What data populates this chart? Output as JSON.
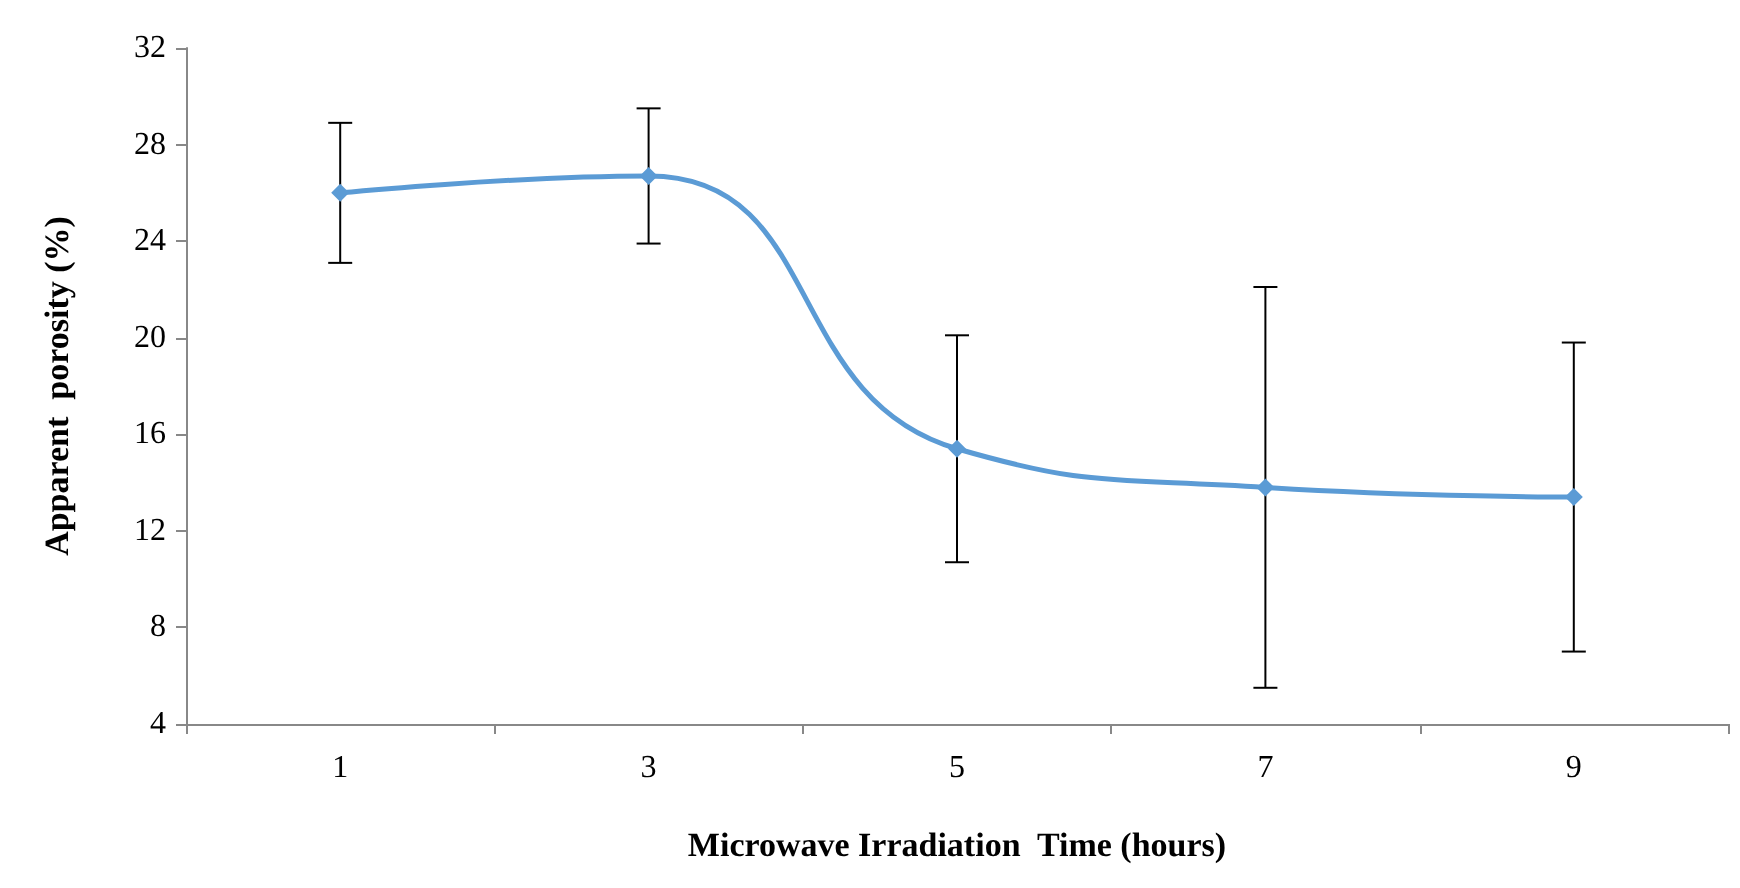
{
  "chart_data": {
    "type": "line",
    "xlabel": "Microwave Irradiation  Time (hours)",
    "ylabel": "Apparent  porosity (%)",
    "categories": [
      "1",
      "3",
      "5",
      "7",
      "9"
    ],
    "series": [
      {
        "color": "#5b9bd5",
        "values": [
          26.0,
          26.7,
          15.4,
          13.8,
          13.4
        ],
        "errors": [
          2.9,
          2.8,
          4.7,
          8.3,
          6.4
        ]
      }
    ],
    "ylim": [
      4,
      32
    ],
    "yticks": [
      4,
      8,
      12,
      16,
      20,
      24,
      28,
      32
    ],
    "grid": false,
    "marker": "diamond",
    "line_style": "solid"
  }
}
